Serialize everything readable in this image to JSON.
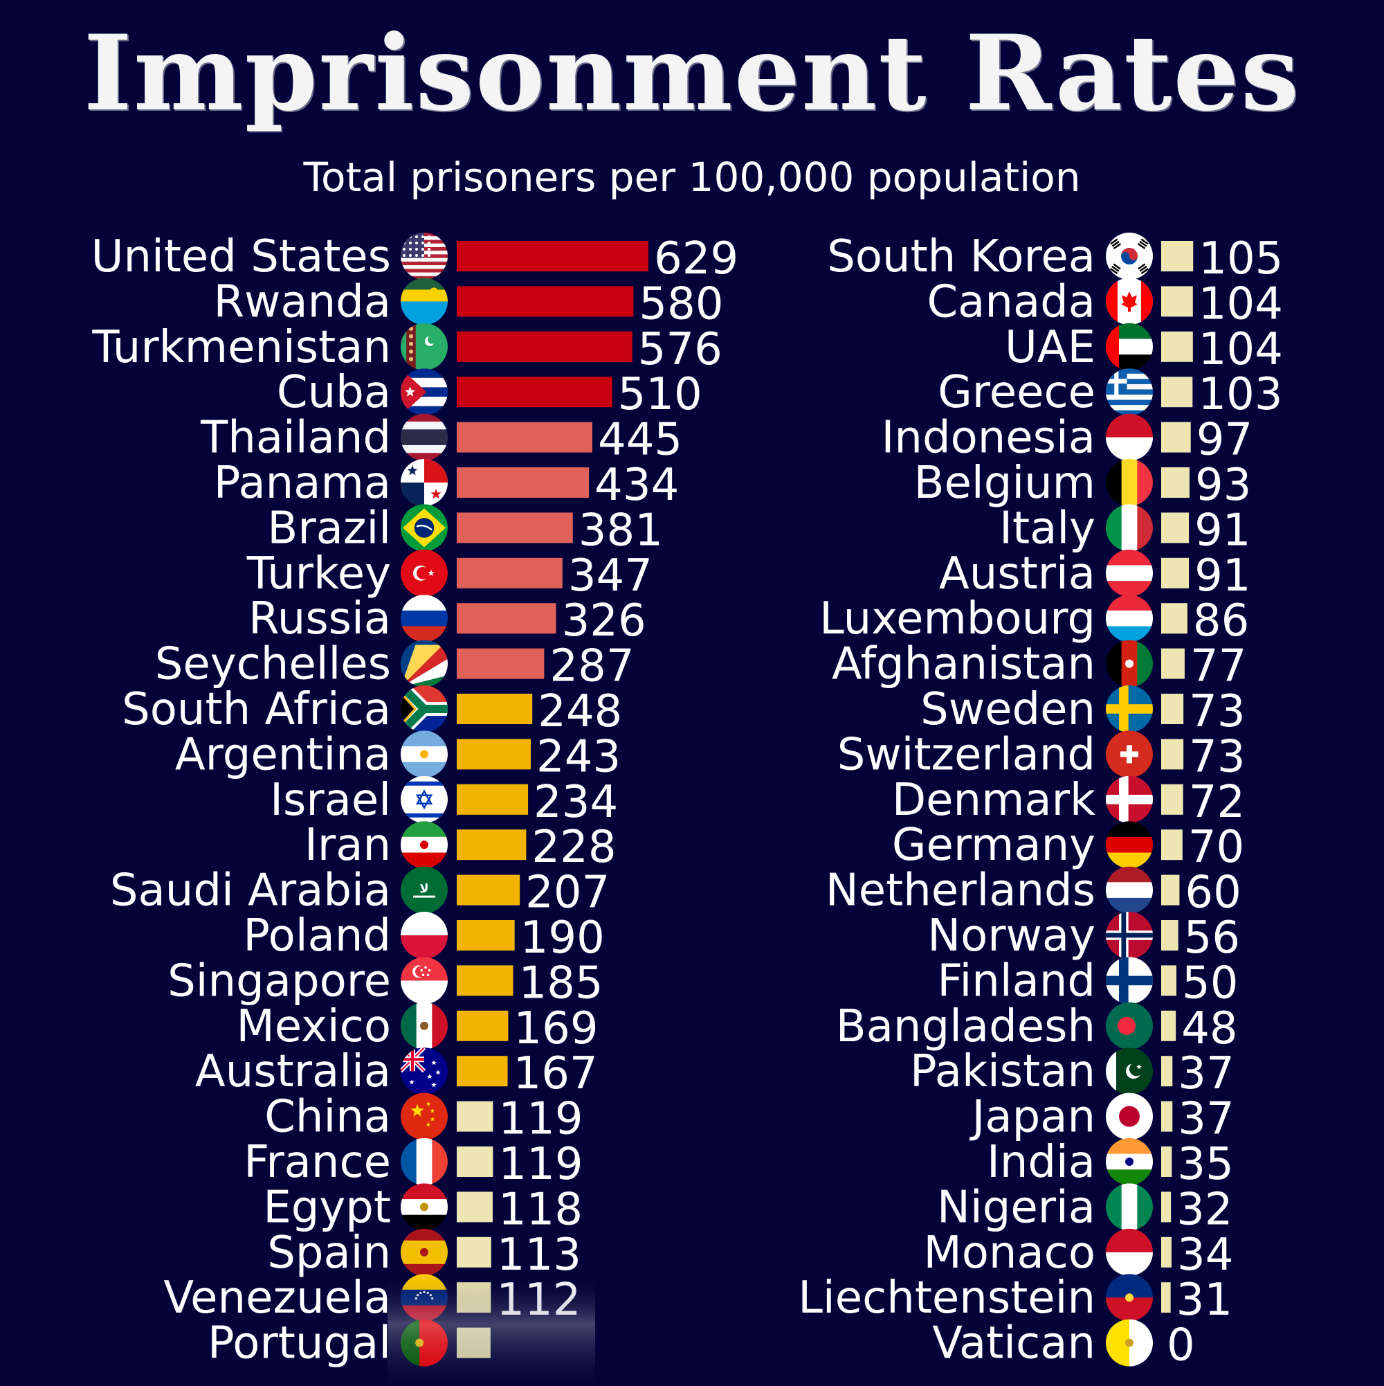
{
  "title": "Imprisonment Rates",
  "subtitle": "Total prisoners per 100,000 population",
  "chart_data": {
    "type": "bar",
    "orientation": "horizontal",
    "title": "Imprisonment Rates",
    "subtitle": "Total prisoners per 100,000 population",
    "xlabel": "",
    "ylabel": "",
    "grid": false,
    "color_tiers": [
      {
        "min": 500,
        "color": "#c8000f"
      },
      {
        "min": 250,
        "color": "#e0605a"
      },
      {
        "min": 150,
        "color": "#f2b400"
      },
      {
        "min": 0,
        "color": "#ede6b2"
      }
    ],
    "columns": [
      {
        "categories": [
          "United States",
          "Rwanda",
          "Turkmenistan",
          "Cuba",
          "Thailand",
          "Panama",
          "Brazil",
          "Turkey",
          "Russia",
          "Seychelles",
          "South Africa",
          "Argentina",
          "Israel",
          "Iran",
          "Saudi Arabia",
          "Poland",
          "Singapore",
          "Mexico",
          "Australia",
          "China",
          "France",
          "Egypt",
          "Spain",
          "Venezuela",
          "Portugal"
        ],
        "values": [
          629,
          580,
          576,
          510,
          445,
          434,
          381,
          347,
          326,
          287,
          248,
          243,
          234,
          228,
          207,
          190,
          185,
          169,
          167,
          119,
          119,
          118,
          113,
          112,
          111
        ],
        "value_labels": [
          "629",
          "580",
          "576",
          "510",
          "445",
          "434",
          "381",
          "347",
          "326",
          "287",
          "248",
          "243",
          "234",
          "228",
          "207",
          "190",
          "185",
          "169",
          "167",
          "119",
          "119",
          "118",
          "113",
          "112",
          ""
        ]
      },
      {
        "categories": [
          "South Korea",
          "Canada",
          "UAE",
          "Greece",
          "Indonesia",
          "Belgium",
          "Italy",
          "Austria",
          "Luxembourg",
          "Afghanistan",
          "Sweden",
          "Switzerland",
          "Denmark",
          "Germany",
          "Netherlands",
          "Norway",
          "Finland",
          "Bangladesh",
          "Pakistan",
          "Japan",
          "India",
          "Nigeria",
          "Monaco",
          "Liechtenstein",
          "Vatican"
        ],
        "values": [
          105,
          104,
          104,
          103,
          97,
          93,
          91,
          91,
          86,
          77,
          73,
          73,
          72,
          70,
          60,
          56,
          50,
          48,
          37,
          37,
          35,
          32,
          34,
          31,
          0
        ],
        "value_labels": [
          "105",
          "104",
          "104",
          "103",
          "97",
          "93",
          "91",
          "91",
          "86",
          "77",
          "73",
          "73",
          "72",
          "70",
          "60",
          "56",
          "50",
          "48",
          "37",
          "37",
          "35",
          "32",
          "34",
          "31",
          "0"
        ]
      }
    ]
  },
  "flags": {
    "United States": {
      "type": "usa",
      "colors": [
        "#b22234",
        "#ffffff",
        "#3c3b6e"
      ]
    },
    "Rwanda": {
      "type": "h",
      "colors": [
        "#20603d",
        "#fad201",
        "#00a1de"
      ],
      "weights": [
        1,
        1,
        2
      ],
      "sun": "#fad201"
    },
    "Turkmenistan": {
      "type": "turkmen",
      "colors": [
        "#28ae66",
        "#7a1f1f"
      ]
    },
    "Cuba": {
      "type": "cuba",
      "colors": [
        "#002a8f",
        "#ffffff",
        "#cf142b"
      ]
    },
    "Thailand": {
      "type": "h",
      "colors": [
        "#a51931",
        "#f4f5f8",
        "#2d2a4a",
        "#f4f5f8",
        "#a51931"
      ],
      "weights": [
        1,
        1,
        2,
        1,
        1
      ]
    },
    "Panama": {
      "type": "panama",
      "colors": [
        "#ffffff",
        "#da121a",
        "#072357"
      ]
    },
    "Brazil": {
      "type": "brazil",
      "colors": [
        "#009c3b",
        "#ffdf00",
        "#002776"
      ]
    },
    "Turkey": {
      "type": "crescent",
      "colors": [
        "#e30a17",
        "#ffffff"
      ]
    },
    "Russia": {
      "type": "h",
      "colors": [
        "#ffffff",
        "#0039a6",
        "#d52b1e"
      ]
    },
    "Seychelles": {
      "type": "seychelles",
      "colors": [
        "#003f87",
        "#fcd856",
        "#d62828",
        "#ffffff",
        "#007a3d"
      ]
    },
    "South Africa": {
      "type": "southafrica",
      "colors": [
        "#de3831",
        "#002395",
        "#007a4d",
        "#ffb612",
        "#000000",
        "#ffffff"
      ]
    },
    "Argentina": {
      "type": "h",
      "colors": [
        "#74acdf",
        "#ffffff",
        "#74acdf"
      ],
      "sun": "#f6b40e"
    },
    "Israel": {
      "type": "israel",
      "colors": [
        "#ffffff",
        "#0038b8"
      ]
    },
    "Iran": {
      "type": "h",
      "colors": [
        "#239f40",
        "#ffffff",
        "#da0000"
      ],
      "emblem": "#da0000"
    },
    "Saudi Arabia": {
      "type": "saudi",
      "colors": [
        "#006c35",
        "#ffffff"
      ]
    },
    "Poland": {
      "type": "h",
      "colors": [
        "#ffffff",
        "#dc143c"
      ]
    },
    "Singapore": {
      "type": "singapore",
      "colors": [
        "#ef3340",
        "#ffffff"
      ]
    },
    "Mexico": {
      "type": "v",
      "colors": [
        "#006847",
        "#ffffff",
        "#ce1126"
      ],
      "emblem": "#8a5a2b"
    },
    "Australia": {
      "type": "australia",
      "colors": [
        "#00008b",
        "#ffffff",
        "#e4002b"
      ]
    },
    "China": {
      "type": "china",
      "colors": [
        "#de2910",
        "#ffde00"
      ]
    },
    "France": {
      "type": "v",
      "colors": [
        "#0055a4",
        "#ffffff",
        "#ef4135"
      ]
    },
    "Egypt": {
      "type": "h",
      "colors": [
        "#ce1126",
        "#ffffff",
        "#000000"
      ],
      "emblem": "#c09300"
    },
    "Spain": {
      "type": "h",
      "colors": [
        "#aa151b",
        "#f1bf00",
        "#aa151b"
      ],
      "weights": [
        1,
        2,
        1
      ],
      "emblem": "#aa151b"
    },
    "Venezuela": {
      "type": "h",
      "colors": [
        "#ffcc00",
        "#00247d",
        "#cf142b"
      ],
      "stars": "#ffffff"
    },
    "Portugal": {
      "type": "v",
      "colors": [
        "#006600",
        "#ff0000"
      ],
      "weights": [
        2,
        3
      ],
      "emblem": "#ffcc00"
    },
    "South Korea": {
      "type": "korea",
      "colors": [
        "#ffffff",
        "#cd2e3a",
        "#0047a0",
        "#000000"
      ]
    },
    "Canada": {
      "type": "canada",
      "colors": [
        "#ff0000",
        "#ffffff"
      ]
    },
    "UAE": {
      "type": "uae",
      "colors": [
        "#ff0000",
        "#00732f",
        "#ffffff",
        "#000000"
      ]
    },
    "Greece": {
      "type": "greece",
      "colors": [
        "#0d5eaf",
        "#ffffff"
      ]
    },
    "Indonesia": {
      "type": "h",
      "colors": [
        "#ce1126",
        "#ffffff"
      ]
    },
    "Belgium": {
      "type": "v",
      "colors": [
        "#000000",
        "#fdda24",
        "#ef3340"
      ]
    },
    "Italy": {
      "type": "v",
      "colors": [
        "#009246",
        "#ffffff",
        "#ce2b37"
      ]
    },
    "Austria": {
      "type": "h",
      "colors": [
        "#ed2939",
        "#ffffff",
        "#ed2939"
      ]
    },
    "Luxembourg": {
      "type": "h",
      "colors": [
        "#ed2939",
        "#ffffff",
        "#00a1de"
      ]
    },
    "Afghanistan": {
      "type": "v",
      "colors": [
        "#000000",
        "#d32011",
        "#007a36"
      ],
      "emblem": "#ffffff"
    },
    "Sweden": {
      "type": "nordic",
      "colors": [
        "#006aa7",
        "#fecc00"
      ]
    },
    "Switzerland": {
      "type": "swiss",
      "colors": [
        "#d52b1e",
        "#ffffff"
      ]
    },
    "Denmark": {
      "type": "nordic",
      "colors": [
        "#c8102e",
        "#ffffff"
      ]
    },
    "Germany": {
      "type": "h",
      "colors": [
        "#000000",
        "#dd0000",
        "#ffce00"
      ]
    },
    "Netherlands": {
      "type": "h",
      "colors": [
        "#ae1c28",
        "#ffffff",
        "#21468b"
      ]
    },
    "Norway": {
      "type": "nordic2",
      "colors": [
        "#ba0c2f",
        "#ffffff",
        "#00205b"
      ]
    },
    "Finland": {
      "type": "nordic",
      "colors": [
        "#ffffff",
        "#003580"
      ]
    },
    "Bangladesh": {
      "type": "bangladesh",
      "colors": [
        "#006a4e",
        "#f42a41"
      ]
    },
    "Pakistan": {
      "type": "pakistan",
      "colors": [
        "#01411c",
        "#ffffff"
      ]
    },
    "Japan": {
      "type": "japan",
      "colors": [
        "#ffffff",
        "#bc002d"
      ]
    },
    "India": {
      "type": "h",
      "colors": [
        "#ff9933",
        "#ffffff",
        "#138808"
      ],
      "emblem": "#000080"
    },
    "Nigeria": {
      "type": "v",
      "colors": [
        "#008751",
        "#ffffff",
        "#008751"
      ]
    },
    "Monaco": {
      "type": "h",
      "colors": [
        "#ce1126",
        "#ffffff"
      ]
    },
    "Liechtenstein": {
      "type": "h",
      "colors": [
        "#002b7f",
        "#ce1126"
      ],
      "emblem": "#ffd83d"
    },
    "Vatican": {
      "type": "v",
      "colors": [
        "#ffe000",
        "#ffffff"
      ],
      "emblem": "#c9a227"
    }
  }
}
